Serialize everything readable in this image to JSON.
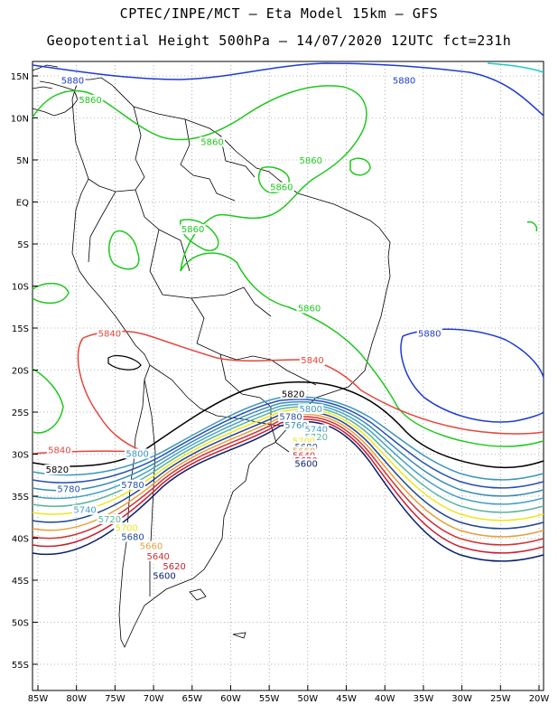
{
  "header": {
    "line1": "CPTEC/INPE/MCT –  Eta Model 15km – GFS",
    "line2": "Geopotential Height 500hPa – 14/07/2020 12UTC fct=231h"
  },
  "axes": {
    "lat_labels": [
      "15N",
      "10N",
      "5N",
      "EQ",
      "5S",
      "10S",
      "15S",
      "20S",
      "25S",
      "30S",
      "35S",
      "40S",
      "45S",
      "50S",
      "55S"
    ],
    "lon_labels": [
      "85W",
      "80W",
      "75W",
      "70W",
      "65W",
      "60W",
      "55W",
      "50W",
      "45W",
      "40W",
      "35W",
      "30W",
      "25W",
      "20W"
    ],
    "grid": "dotted"
  },
  "contours": {
    "colors": {
      "5880": "#1e3cd2",
      "5860": "#1ec81e",
      "5840": "#e6463c",
      "5820": "#000000",
      "5800": "#3c96be",
      "5780": "#2850b4",
      "5760": "#3a8cb4",
      "5740": "#46a0c8",
      "5720": "#5ab4a0",
      "5700": "#f0e61e",
      "5680": "#1e4690",
      "5660": "#e6a03c",
      "5640": "#d23232",
      "5620": "#c81e32",
      "5600": "#0a1e6e",
      "5900": "#1ec8c8"
    },
    "labels": [
      {
        "text": "5880",
        "color": "#1e3cd2",
        "lon": -80.5,
        "lat": 14.3
      },
      {
        "text": "5880",
        "color": "#1e3cd2",
        "lon": -37.5,
        "lat": 14.3
      },
      {
        "text": "5880",
        "color": "#1e3cd2",
        "lon": -34.2,
        "lat": -15.8
      },
      {
        "text": "5860",
        "color": "#1ec81e",
        "lon": -78.2,
        "lat": 12.0
      },
      {
        "text": "5860",
        "color": "#1ec81e",
        "lon": -62.4,
        "lat": 7.0
      },
      {
        "text": "5860",
        "color": "#1ec81e",
        "lon": -49.6,
        "lat": 4.8
      },
      {
        "text": "5860",
        "color": "#1ec81e",
        "lon": -53.4,
        "lat": 1.6
      },
      {
        "text": "5860",
        "color": "#1ec81e",
        "lon": -64.9,
        "lat": -3.4
      },
      {
        "text": "5860",
        "color": "#1ec81e",
        "lon": -49.8,
        "lat": -12.8
      },
      {
        "text": "5840",
        "color": "#e6463c",
        "lon": -75.7,
        "lat": -15.8
      },
      {
        "text": "5840",
        "color": "#e6463c",
        "lon": -49.4,
        "lat": -19.0
      },
      {
        "text": "5840",
        "color": "#e6463c",
        "lon": -82.2,
        "lat": -29.7
      },
      {
        "text": "5820",
        "color": "#000000",
        "lon": -82.5,
        "lat": -32.0
      },
      {
        "text": "5820",
        "color": "#000000",
        "lon": -51.9,
        "lat": -23.0
      },
      {
        "text": "5800",
        "color": "#3c96be",
        "lon": -72.1,
        "lat": -30.1
      },
      {
        "text": "5800",
        "color": "#3c96be",
        "lon": -49.6,
        "lat": -24.8
      },
      {
        "text": "5780",
        "color": "#2850b4",
        "lon": -81.0,
        "lat": -34.3
      },
      {
        "text": "5780",
        "color": "#2850b4",
        "lon": -72.7,
        "lat": -33.8
      },
      {
        "text": "5780",
        "color": "#2850b4",
        "lon": -52.2,
        "lat": -25.7
      },
      {
        "text": "5760",
        "color": "#3a8cb4",
        "lon": -51.5,
        "lat": -26.7
      },
      {
        "text": "5740",
        "color": "#46a0c8",
        "lon": -78.9,
        "lat": -36.8
      },
      {
        "text": "5740",
        "color": "#46a0c8",
        "lon": -48.9,
        "lat": -27.2
      },
      {
        "text": "5720",
        "color": "#5ab4a0",
        "lon": -75.7,
        "lat": -37.9
      },
      {
        "text": "5720",
        "color": "#5ab4a0",
        "lon": -48.9,
        "lat": -28.1
      },
      {
        "text": "5700",
        "color": "#f0e61e",
        "lon": -73.5,
        "lat": -38.9
      },
      {
        "text": "5700",
        "color": "#f0e61e",
        "lon": -50.5,
        "lat": -28.6
      },
      {
        "text": "5680",
        "color": "#1e4690",
        "lon": -72.7,
        "lat": -40.0
      },
      {
        "text": "5680",
        "color": "#1e4690",
        "lon": -50.2,
        "lat": -29.3
      },
      {
        "text": "5660",
        "color": "#e6a03c",
        "lon": -70.3,
        "lat": -41.1
      },
      {
        "text": "5660",
        "color": "#e6a03c",
        "lon": -50.5,
        "lat": -29.8
      },
      {
        "text": "5640",
        "color": "#d23232",
        "lon": -69.4,
        "lat": -42.3
      },
      {
        "text": "5640",
        "color": "#d23232",
        "lon": -50.5,
        "lat": -30.3
      },
      {
        "text": "5620",
        "color": "#c81e32",
        "lon": -67.3,
        "lat": -43.5
      },
      {
        "text": "5620",
        "color": "#c81e32",
        "lon": -50.2,
        "lat": -30.9
      },
      {
        "text": "5600",
        "color": "#0a1e6e",
        "lon": -68.6,
        "lat": -44.6
      },
      {
        "text": "5600",
        "color": "#0a1e6e",
        "lon": -50.2,
        "lat": -31.3
      }
    ]
  }
}
